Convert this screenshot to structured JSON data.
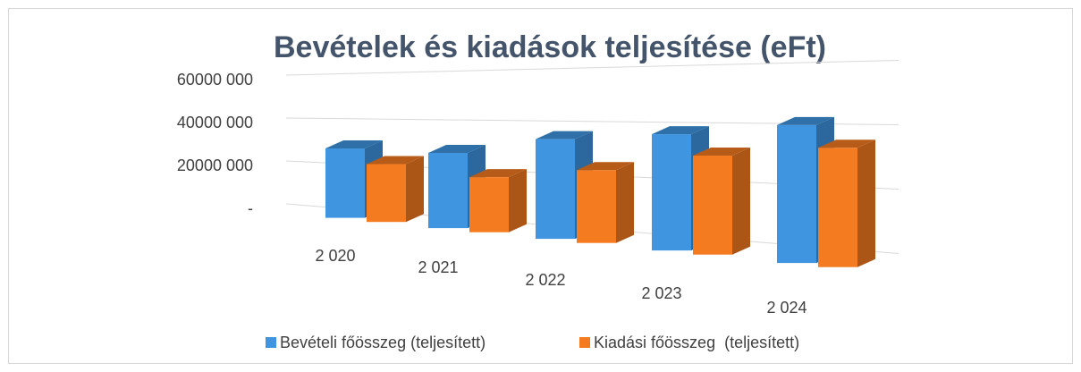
{
  "chart_data": {
    "type": "bar3d",
    "title": "Bevételek és kiadások teljesítése (eFt)",
    "categories": [
      "2 020",
      "2 021",
      "2 022",
      "2 023",
      "2 024"
    ],
    "series": [
      {
        "name": "Bevételi főösszeg (teljesített)",
        "color": "#3f95e0",
        "values": [
          31000000,
          31000000,
          38000000,
          41000000,
          45000000
        ]
      },
      {
        "name": "Kiadási főösszeg  (teljesített)",
        "color": "#f47b20",
        "values": [
          25000000,
          22000000,
          27000000,
          34000000,
          38000000
        ]
      }
    ],
    "ylim": [
      0,
      60000000
    ],
    "yticks": [
      {
        "value": 0,
        "label": "-"
      },
      {
        "value": 20000000,
        "label": "20000 000"
      },
      {
        "value": 40000000,
        "label": "40000 000"
      },
      {
        "value": 60000000,
        "label": "60000 000"
      }
    ],
    "grid": true,
    "legend": "bottom"
  }
}
